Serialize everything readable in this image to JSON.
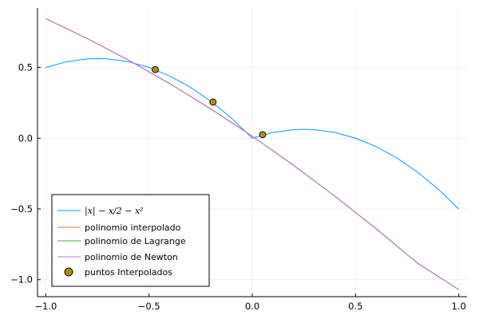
{
  "chart_data": {
    "type": "line",
    "title": "",
    "xlabel": "",
    "ylabel": "",
    "xlim": [
      -1.04,
      1.04
    ],
    "ylim": [
      -1.12,
      0.92
    ],
    "x_ticks": [
      -1.0,
      -0.5,
      0.0,
      0.5,
      1.0
    ],
    "x_tick_labels": [
      "−1.0",
      "−0.5",
      "0.0",
      "0.5",
      "1.0"
    ],
    "y_ticks": [
      -1.0,
      -0.5,
      0.0,
      0.5
    ],
    "y_tick_labels": [
      "−1.0",
      "−0.5",
      "0.0",
      "0.5"
    ],
    "grid": true,
    "legend_position": "bottom-left",
    "series": [
      {
        "name": "|x| − x/2 − x²",
        "color": "#009AFA",
        "x": [
          -1.0,
          -0.9,
          -0.8,
          -0.75,
          -0.7,
          -0.6,
          -0.5,
          -0.4,
          -0.3,
          -0.2,
          -0.1,
          0.0,
          0.1,
          0.2,
          0.25,
          0.3,
          0.4,
          0.5,
          0.6,
          0.7,
          0.8,
          0.9,
          1.0
        ],
        "y": [
          0.5,
          0.54,
          0.56,
          0.5625,
          0.56,
          0.54,
          0.5,
          0.44,
          0.36,
          0.26,
          0.14,
          0.0,
          0.04,
          0.06,
          0.0625,
          0.06,
          0.04,
          0.0,
          -0.06,
          -0.14,
          -0.24,
          -0.36,
          -0.5
        ]
      },
      {
        "name": "polinomio interpolado",
        "color": "#E36F47",
        "x": [
          -1.0,
          -0.8,
          -0.6,
          -0.4,
          -0.2,
          0.0,
          0.2,
          0.4,
          0.6,
          0.8,
          1.0
        ],
        "y": [
          0.845,
          0.705,
          0.552,
          0.386,
          0.206,
          0.014,
          -0.192,
          -0.41,
          -0.64,
          -0.883,
          -1.07
        ]
      },
      {
        "name": "polinomio de Lagrange",
        "color": "#3EA44E",
        "x": [
          -1.0,
          -0.8,
          -0.6,
          -0.4,
          -0.2,
          0.0,
          0.2,
          0.4,
          0.6,
          0.8,
          1.0
        ],
        "y": [
          0.845,
          0.705,
          0.552,
          0.386,
          0.206,
          0.014,
          -0.192,
          -0.41,
          -0.64,
          -0.883,
          -1.07
        ]
      },
      {
        "name": "polinomio de Newton",
        "color": "#C271D2",
        "x": [
          -1.0,
          -0.8,
          -0.6,
          -0.4,
          -0.2,
          0.0,
          0.2,
          0.4,
          0.6,
          0.8,
          1.0
        ],
        "y": [
          0.845,
          0.705,
          0.552,
          0.386,
          0.206,
          0.014,
          -0.192,
          -0.41,
          -0.64,
          -0.883,
          -1.07
        ]
      }
    ],
    "points": {
      "name": "puntos Interpolados",
      "color": "#AC8D18",
      "x": [
        -0.47,
        -0.19,
        0.05
      ],
      "y": [
        0.485,
        0.255,
        0.025
      ]
    }
  }
}
